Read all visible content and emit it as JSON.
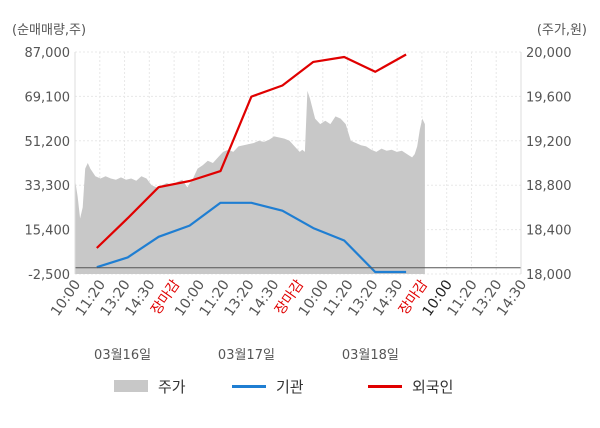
{
  "chart_data": {
    "type": "line",
    "left_axis_unit": "(순매매량,주)",
    "right_axis_unit": "(주가,원)",
    "left_ticks": [
      "87,000",
      "69,100",
      "51,200",
      "33,300",
      "15,400",
      "-2,500"
    ],
    "right_ticks": [
      "20,000",
      "19,600",
      "19,200",
      "18,800",
      "18,400",
      "18,000"
    ],
    "left_range": [
      -2500,
      87000
    ],
    "right_range": [
      18000,
      20000
    ],
    "x_labels": [
      "10:00",
      "11:20",
      "13:20",
      "14:30",
      "장마감",
      "10:00",
      "11:20",
      "13:20",
      "14:30",
      "장마감",
      "10:00",
      "11:20",
      "13:20",
      "14:30",
      "장마감",
      "10:00",
      "11:20",
      "13:20",
      "14:30"
    ],
    "dates": [
      "03월16일",
      "03월17일",
      "03월18일"
    ],
    "series": [
      {
        "name": "주가",
        "type": "area",
        "color": "#c8c8c8",
        "points": [
          [
            0,
            18850
          ],
          [
            1,
            18700
          ],
          [
            2,
            18500
          ],
          [
            3,
            18600
          ],
          [
            4,
            18950
          ],
          [
            5,
            19000
          ],
          [
            6,
            18950
          ],
          [
            8,
            18880
          ],
          [
            10,
            18860
          ],
          [
            12,
            18880
          ],
          [
            14,
            18860
          ],
          [
            16,
            18850
          ],
          [
            18,
            18870
          ],
          [
            20,
            18850
          ],
          [
            22,
            18860
          ],
          [
            24,
            18840
          ],
          [
            26,
            18880
          ],
          [
            28,
            18860
          ],
          [
            30,
            18800
          ],
          [
            32,
            18780
          ],
          [
            34,
            18800
          ],
          [
            36,
            18820
          ],
          [
            38,
            18800
          ],
          [
            40,
            18830
          ],
          [
            42,
            18850
          ],
          [
            44,
            18780
          ],
          [
            45,
            18820
          ],
          [
            46,
            18850
          ],
          [
            47,
            18900
          ],
          [
            48,
            18950
          ],
          [
            50,
            18980
          ],
          [
            52,
            19020
          ],
          [
            54,
            19000
          ],
          [
            56,
            19050
          ],
          [
            58,
            19100
          ],
          [
            60,
            19120
          ],
          [
            62,
            19100
          ],
          [
            64,
            19150
          ],
          [
            66,
            19160
          ],
          [
            68,
            19170
          ],
          [
            70,
            19180
          ],
          [
            72,
            19200
          ],
          [
            74,
            19190
          ],
          [
            76,
            19210
          ],
          [
            78,
            19240
          ],
          [
            80,
            19230
          ],
          [
            82,
            19220
          ],
          [
            84,
            19200
          ],
          [
            86,
            19150
          ],
          [
            88,
            19100
          ],
          [
            89,
            19120
          ],
          [
            90,
            19100
          ],
          [
            91,
            19650
          ],
          [
            92,
            19580
          ],
          [
            94,
            19400
          ],
          [
            96,
            19350
          ],
          [
            98,
            19380
          ],
          [
            100,
            19350
          ],
          [
            102,
            19420
          ],
          [
            104,
            19400
          ],
          [
            106,
            19350
          ],
          [
            108,
            19200
          ],
          [
            110,
            19180
          ],
          [
            112,
            19160
          ],
          [
            114,
            19150
          ],
          [
            116,
            19120
          ],
          [
            118,
            19100
          ],
          [
            120,
            19130
          ],
          [
            122,
            19110
          ],
          [
            124,
            19120
          ],
          [
            126,
            19100
          ],
          [
            128,
            19110
          ],
          [
            130,
            19080
          ],
          [
            132,
            19050
          ],
          [
            133,
            19080
          ],
          [
            134,
            19150
          ],
          [
            135,
            19300
          ],
          [
            136,
            19400
          ],
          [
            137,
            19350
          ]
        ]
      },
      {
        "name": "기관",
        "type": "line",
        "color": "#1f7ed2",
        "points": [
          [
            0,
            250
          ],
          [
            1,
            4200
          ],
          [
            2,
            12500
          ],
          [
            3,
            17000
          ],
          [
            4,
            26200
          ],
          [
            5,
            26200
          ],
          [
            6,
            23000
          ],
          [
            7,
            16000
          ],
          [
            8,
            11000
          ],
          [
            9,
            -1700
          ],
          [
            10,
            -1700
          ]
        ]
      },
      {
        "name": "외국인",
        "type": "line",
        "color": "#e00000",
        "points": [
          [
            0,
            8000
          ],
          [
            1,
            20000
          ],
          [
            2,
            32500
          ],
          [
            3,
            35000
          ],
          [
            4,
            39000
          ],
          [
            5,
            69000
          ],
          [
            6,
            73500
          ],
          [
            7,
            83000
          ],
          [
            8,
            85000
          ],
          [
            9,
            79000
          ],
          [
            10,
            86000
          ]
        ]
      }
    ],
    "legend": [
      "주가",
      "기관",
      "외국인"
    ]
  }
}
